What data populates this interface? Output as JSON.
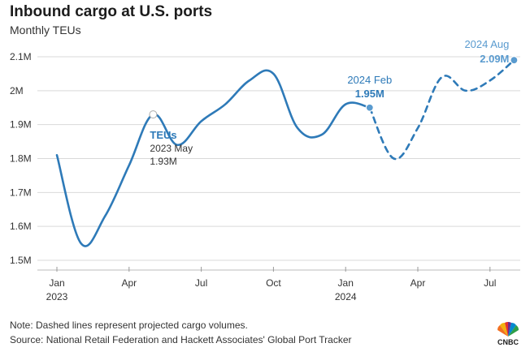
{
  "header": {
    "title": "Inbound cargo at U.S. ports",
    "subtitle": "Monthly TEUs"
  },
  "footer": {
    "note": "Note: Dashed lines represent projected cargo volumes.",
    "source": "Source: National Retail Federation and Hackett Associates' Global Port Tracker",
    "logo_text": "CNBC",
    "logo_icon": "peacock-icon"
  },
  "colors": {
    "line": "#2e7ab8",
    "projection": "#2e7ab8",
    "annotation_light": "#5a9bcf",
    "grid": "#d9d9d9",
    "axis_text": "#333333"
  },
  "chart_data": {
    "type": "line",
    "ylim": [
      1.5,
      2.1
    ],
    "yticks": [
      1.5,
      1.6,
      1.7,
      1.8,
      1.9,
      2.0,
      2.1
    ],
    "ytick_labels": [
      "1.5M",
      "1.6M",
      "1.7M",
      "1.8M",
      "1.9M",
      "2M",
      "2.1M"
    ],
    "grid": "horizontal",
    "xticks": [
      {
        "month": "2023-01",
        "label": "Jan",
        "year": "2023"
      },
      {
        "month": "2023-04",
        "label": "Apr",
        "year": ""
      },
      {
        "month": "2023-07",
        "label": "Jul",
        "year": ""
      },
      {
        "month": "2023-10",
        "label": "Oct",
        "year": ""
      },
      {
        "month": "2024-01",
        "label": "Jan",
        "year": "2024"
      },
      {
        "month": "2024-04",
        "label": "Apr",
        "year": ""
      },
      {
        "month": "2024-07",
        "label": "Jul",
        "year": ""
      }
    ],
    "series": [
      {
        "name": "TEUs",
        "style": "solid",
        "points": [
          {
            "month": "2023-01",
            "value": 1.81
          },
          {
            "month": "2023-02",
            "value": 1.55
          },
          {
            "month": "2023-03",
            "value": 1.63
          },
          {
            "month": "2023-04",
            "value": 1.78
          },
          {
            "month": "2023-05",
            "value": 1.93
          },
          {
            "month": "2023-06",
            "value": 1.84
          },
          {
            "month": "2023-07",
            "value": 1.91
          },
          {
            "month": "2023-08",
            "value": 1.96
          },
          {
            "month": "2023-09",
            "value": 2.03
          },
          {
            "month": "2023-10",
            "value": 2.05
          },
          {
            "month": "2023-11",
            "value": 1.89
          },
          {
            "month": "2023-12",
            "value": 1.87
          },
          {
            "month": "2024-01",
            "value": 1.96
          },
          {
            "month": "2024-02",
            "value": 1.95
          }
        ]
      },
      {
        "name": "",
        "style": "dashed",
        "points": [
          {
            "month": "2024-02",
            "value": 1.95
          },
          {
            "month": "2024-03",
            "value": 1.8
          },
          {
            "month": "2024-04",
            "value": 1.89
          },
          {
            "month": "2024-05",
            "value": 2.04
          },
          {
            "month": "2024-06",
            "value": 2.0
          },
          {
            "month": "2024-07",
            "value": 2.03
          },
          {
            "month": "2024-08",
            "value": 2.09
          }
        ]
      }
    ],
    "annotations": [
      {
        "month": "2023-05",
        "value": 1.93,
        "name": "TEUs",
        "date": "2023 May",
        "label": "1.93M",
        "marker": "hollow"
      },
      {
        "month": "2024-02",
        "value": 1.95,
        "date": "2024 Feb",
        "label": "1.95M",
        "marker": "filled"
      },
      {
        "month": "2024-08",
        "value": 2.09,
        "date": "2024 Aug",
        "label": "2.09M",
        "marker": "filled"
      }
    ]
  }
}
